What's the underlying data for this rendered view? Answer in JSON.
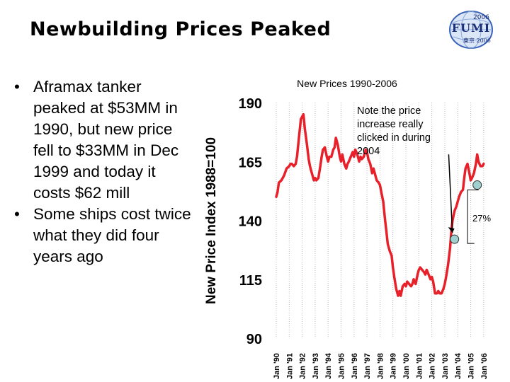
{
  "slide": {
    "title": "Newbuilding Prices Peaked",
    "bullets": [
      "Aframax tanker peaked at $53MM in 1990, but new price fell to $33MM in Dec 1999 and today it costs $62 mill",
      "Some ships cost twice what they did four years ago"
    ]
  },
  "logo": {
    "text": "FUMI",
    "year": "2006",
    "sub": "東京 2006"
  },
  "chart_data": {
    "type": "line",
    "title": "New Prices 1990-2006",
    "xlabel": "",
    "ylabel": "New Price Index 1988=100",
    "ylim": [
      90,
      190
    ],
    "yticks": [
      90,
      115,
      140,
      165,
      190
    ],
    "xticks": [
      "Jan '90",
      "Jan '91",
      "Jan '92",
      "Jan '93",
      "Jan '94",
      "Jan '95",
      "Jan '96",
      "Jan '97",
      "Jan '98",
      "Jan '99",
      "Jan '00",
      "Jan '01",
      "Jan '02",
      "Jan '03",
      "Jan '04",
      "Jan '05",
      "Jan '06"
    ],
    "grid": true,
    "line_color": "#e8202a",
    "series": [
      {
        "name": "New Price Index",
        "x": [
          1990.0,
          1990.1,
          1990.2,
          1990.4,
          1990.6,
          1990.8,
          1991.0,
          1991.1,
          1991.2,
          1991.35,
          1991.5,
          1991.6,
          1991.75,
          1991.9,
          1992.0,
          1992.1,
          1992.2,
          1992.35,
          1992.5,
          1992.6,
          1992.75,
          1992.9,
          1993.0,
          1993.1,
          1993.25,
          1993.4,
          1993.5,
          1993.6,
          1993.75,
          1993.9,
          1994.0,
          1994.1,
          1994.25,
          1994.4,
          1994.5,
          1994.6,
          1994.75,
          1994.9,
          1995.0,
          1995.1,
          1995.25,
          1995.4,
          1995.5,
          1995.6,
          1995.75,
          1995.9,
          1996.0,
          1996.1,
          1996.25,
          1996.4,
          1996.5,
          1996.6,
          1996.75,
          1996.9,
          1997.0,
          1997.1,
          1997.25,
          1997.4,
          1997.5,
          1997.6,
          1997.75,
          1997.9,
          1998.0,
          1998.1,
          1998.25,
          1998.4,
          1998.5,
          1998.6,
          1998.75,
          1998.9,
          1999.0,
          1999.1,
          1999.25,
          1999.4,
          1999.5,
          1999.6,
          1999.75,
          1999.9,
          2000.0,
          2000.1,
          2000.25,
          2000.4,
          2000.5,
          2000.6,
          2000.75,
          2000.9,
          2001.0,
          2001.1,
          2001.25,
          2001.4,
          2001.5,
          2001.6,
          2001.75,
          2001.9,
          2002.0,
          2002.1,
          2002.25,
          2002.4,
          2002.5,
          2002.6,
          2002.75,
          2002.9,
          2003.0,
          2003.1,
          2003.25,
          2003.4,
          2003.5,
          2003.6,
          2003.75,
          2003.9,
          2004.0,
          2004.1,
          2004.25,
          2004.4,
          2004.5,
          2004.6,
          2004.75,
          2004.9,
          2005.0,
          2005.1,
          2005.25,
          2005.4,
          2005.5,
          2005.6,
          2005.75,
          2005.9,
          2006.0
        ],
        "values": [
          150,
          152,
          156,
          157,
          159,
          162,
          163,
          164,
          164,
          163,
          164,
          167,
          175,
          183,
          184,
          185,
          179,
          173,
          166,
          163,
          160,
          157,
          158,
          157,
          158,
          163,
          167,
          170,
          171,
          167,
          165,
          167,
          167,
          170,
          171,
          175,
          172,
          167,
          165,
          168,
          164,
          162,
          164,
          165,
          167,
          169,
          167,
          170,
          168,
          165,
          167,
          166,
          167,
          170,
          169,
          166,
          164,
          160,
          162,
          160,
          157,
          156,
          155,
          152,
          148,
          140,
          135,
          130,
          127,
          125,
          120,
          116,
          111,
          108,
          110,
          108,
          112,
          113,
          112,
          114,
          113,
          112,
          113,
          115,
          113,
          117,
          119,
          120,
          119,
          118,
          117,
          119,
          117,
          115,
          116,
          114,
          109,
          109,
          110,
          109,
          109,
          111,
          113,
          116,
          121,
          128,
          135,
          140,
          144,
          146,
          148,
          150,
          152,
          153,
          158,
          162,
          164,
          160,
          157,
          158,
          160,
          164,
          168,
          165,
          163,
          163,
          164
        ]
      }
    ],
    "annotations": {
      "note": "Note the price increase really clicked in during 2004",
      "pct_label": "27%",
      "low_marker": {
        "x": 2003.75,
        "y": 132
      },
      "high_marker": {
        "x": 2005.5,
        "y": 155
      },
      "arrow_from": {
        "x": 2003.3,
        "y": 168
      }
    }
  }
}
